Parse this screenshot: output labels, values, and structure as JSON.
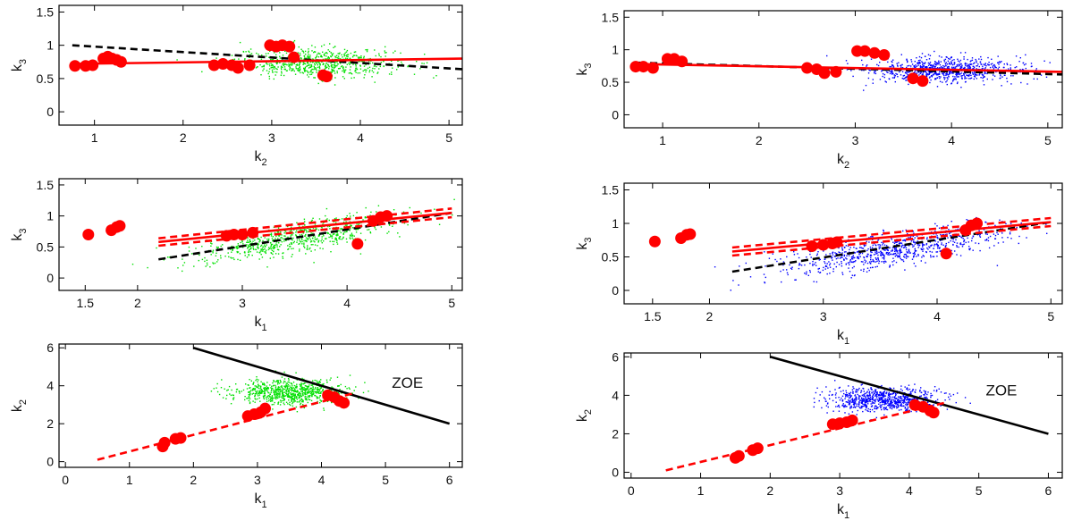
{
  "figure": {
    "background": "#ffffff",
    "colors": {
      "red": "#ff0000",
      "black": "#000000",
      "green": "#00e000",
      "blue": "#0000ff"
    }
  },
  "chart_data": [
    {
      "id": "left-top",
      "type": "scatter",
      "cloud_color": "green",
      "xlabel": "k",
      "xlabel_sub": "2",
      "ylabel": "k",
      "ylabel_sub": "3",
      "xlim": [
        0.6,
        5.15
      ],
      "ylim": [
        -0.2,
        1.6
      ],
      "xticks": [
        1,
        2,
        3,
        4,
        5
      ],
      "xtick_labels": [
        "1",
        "2",
        "3",
        "4",
        "5"
      ],
      "yticks": [
        0,
        0.5,
        1,
        1.5
      ],
      "ytick_labels": [
        "0",
        "0.5",
        "1",
        "1.5"
      ],
      "cloud": {
        "cx": 3.5,
        "cy": 0.75,
        "sx": 0.45,
        "sy": 0.11,
        "n": 700
      },
      "lines": [
        {
          "style": "dashed",
          "color": "black",
          "x": [
            0.75,
            5.15
          ],
          "y": [
            1.0,
            0.64
          ]
        },
        {
          "style": "solid",
          "color": "red",
          "x": [
            0.75,
            5.15
          ],
          "y": [
            0.72,
            0.8
          ]
        }
      ],
      "points": [
        [
          0.78,
          0.69
        ],
        [
          0.9,
          0.69
        ],
        [
          0.98,
          0.7
        ],
        [
          1.1,
          0.8
        ],
        [
          1.15,
          0.83
        ],
        [
          1.2,
          0.8
        ],
        [
          1.25,
          0.78
        ],
        [
          1.3,
          0.75
        ],
        [
          2.35,
          0.7
        ],
        [
          2.45,
          0.72
        ],
        [
          2.55,
          0.7
        ],
        [
          2.62,
          0.66
        ],
        [
          2.75,
          0.7
        ],
        [
          2.98,
          1.0
        ],
        [
          3.05,
          0.98
        ],
        [
          3.12,
          1.0
        ],
        [
          3.2,
          0.98
        ],
        [
          3.25,
          0.82
        ],
        [
          3.58,
          0.55
        ],
        [
          3.62,
          0.53
        ]
      ],
      "annotation": ""
    },
    {
      "id": "left-middle",
      "type": "scatter",
      "cloud_color": "green",
      "xlabel": "k",
      "xlabel_sub": "1",
      "ylabel": "k",
      "ylabel_sub": "3",
      "xlim": [
        1.25,
        5.1
      ],
      "ylim": [
        -0.2,
        1.6
      ],
      "xticks": [
        1.5,
        2,
        3,
        4,
        5
      ],
      "xtick_labels": [
        "1.5",
        "2",
        "3",
        "4",
        "5"
      ],
      "yticks": [
        0,
        0.5,
        1,
        1.5
      ],
      "ytick_labels": [
        "0",
        "0.5",
        "1",
        "1.5"
      ],
      "cloud": {
        "cx": 3.5,
        "cy": 0.65,
        "sx": 0.5,
        "sy": 0.12,
        "slope": 0.28,
        "n": 700
      },
      "lines": [
        {
          "style": "dashed",
          "color": "black",
          "x": [
            2.2,
            5.0
          ],
          "y": [
            0.3,
            1.05
          ]
        },
        {
          "style": "solid",
          "color": "red",
          "x": [
            2.2,
            5.0
          ],
          "y": [
            0.58,
            1.05
          ]
        },
        {
          "style": "dashed",
          "color": "red",
          "x": [
            2.2,
            5.0
          ],
          "y": [
            0.64,
            1.12
          ]
        },
        {
          "style": "dashed",
          "color": "red",
          "x": [
            2.2,
            5.0
          ],
          "y": [
            0.52,
            0.98
          ]
        }
      ],
      "points": [
        [
          1.53,
          0.7
        ],
        [
          1.75,
          0.77
        ],
        [
          1.8,
          0.82
        ],
        [
          1.83,
          0.84
        ],
        [
          2.85,
          0.68
        ],
        [
          2.92,
          0.7
        ],
        [
          3.0,
          0.7
        ],
        [
          3.1,
          0.73
        ],
        [
          4.1,
          0.55
        ],
        [
          4.25,
          0.92
        ],
        [
          4.32,
          0.98
        ],
        [
          4.38,
          1.0
        ]
      ],
      "annotation": ""
    },
    {
      "id": "left-bottom",
      "type": "scatter",
      "cloud_color": "green",
      "xlabel": "k",
      "xlabel_sub": "1",
      "ylabel": "k",
      "ylabel_sub": "2",
      "xlim": [
        -0.1,
        6.2
      ],
      "ylim": [
        -0.3,
        6.2
      ],
      "xticks": [
        0,
        1,
        2,
        3,
        4,
        5,
        6
      ],
      "xtick_labels": [
        "0",
        "1",
        "2",
        "3",
        "4",
        "5",
        "6"
      ],
      "yticks": [
        0,
        2,
        4,
        6
      ],
      "ytick_labels": [
        "0",
        "2",
        "4",
        "6"
      ],
      "cloud": {
        "cx": 3.5,
        "cy": 3.7,
        "sx": 0.42,
        "sy": 0.32,
        "n": 800
      },
      "lines": [
        {
          "style": "solid",
          "color": "black",
          "x": [
            2.0,
            6.0
          ],
          "y": [
            6.0,
            2.0
          ]
        },
        {
          "style": "dashed",
          "color": "red",
          "x": [
            0.5,
            4.5
          ],
          "y": [
            0.1,
            3.6
          ]
        }
      ],
      "points": [
        [
          1.52,
          0.8
        ],
        [
          1.55,
          1.0
        ],
        [
          1.72,
          1.2
        ],
        [
          1.8,
          1.25
        ],
        [
          2.85,
          2.4
        ],
        [
          2.95,
          2.5
        ],
        [
          3.05,
          2.6
        ],
        [
          3.12,
          2.8
        ],
        [
          4.1,
          3.5
        ],
        [
          4.2,
          3.4
        ],
        [
          4.28,
          3.2
        ],
        [
          4.35,
          3.1
        ]
      ],
      "annotation": "ZOE",
      "annotation_pos": [
        5.1,
        3.9
      ]
    },
    {
      "id": "right-top",
      "type": "scatter",
      "cloud_color": "blue",
      "xlabel": "k",
      "xlabel_sub": "2",
      "ylabel": "k",
      "ylabel_sub": "3",
      "xlim": [
        0.6,
        5.15
      ],
      "ylim": [
        -0.2,
        1.6
      ],
      "xticks": [
        1,
        2,
        3,
        4,
        5
      ],
      "xtick_labels": [
        "1",
        "2",
        "3",
        "4",
        "5"
      ],
      "yticks": [
        0,
        0.5,
        1,
        1.5
      ],
      "ytick_labels": [
        "0",
        "0.5",
        "1",
        "1.5"
      ],
      "cloud": {
        "cx": 3.9,
        "cy": 0.7,
        "sx": 0.42,
        "sy": 0.1,
        "n": 800
      },
      "lines": [
        {
          "style": "dashed",
          "color": "black",
          "x": [
            0.75,
            5.15
          ],
          "y": [
            0.8,
            0.62
          ]
        },
        {
          "style": "solid",
          "color": "red",
          "x": [
            0.75,
            5.15
          ],
          "y": [
            0.78,
            0.66
          ]
        }
      ],
      "points": [
        [
          0.72,
          0.74
        ],
        [
          0.8,
          0.74
        ],
        [
          0.9,
          0.72
        ],
        [
          1.05,
          0.86
        ],
        [
          1.12,
          0.86
        ],
        [
          1.2,
          0.82
        ],
        [
          2.5,
          0.72
        ],
        [
          2.6,
          0.7
        ],
        [
          2.68,
          0.64
        ],
        [
          2.8,
          0.66
        ],
        [
          3.02,
          0.98
        ],
        [
          3.1,
          0.98
        ],
        [
          3.2,
          0.95
        ],
        [
          3.3,
          0.92
        ],
        [
          3.6,
          0.56
        ],
        [
          3.7,
          0.52
        ]
      ],
      "annotation": ""
    },
    {
      "id": "right-middle",
      "type": "scatter",
      "cloud_color": "blue",
      "xlabel": "k",
      "xlabel_sub": "1",
      "ylabel": "k",
      "ylabel_sub": "3",
      "xlim": [
        1.25,
        5.1
      ],
      "ylim": [
        -0.2,
        1.6
      ],
      "xticks": [
        1.5,
        2,
        3,
        4,
        5
      ],
      "xtick_labels": [
        "1.5",
        "2",
        "3",
        "4",
        "5"
      ],
      "yticks": [
        0,
        0.5,
        1,
        1.5
      ],
      "ytick_labels": [
        "0",
        "0.5",
        "1",
        "1.5"
      ],
      "cloud": {
        "cx": 3.6,
        "cy": 0.62,
        "sx": 0.5,
        "sy": 0.12,
        "slope": 0.28,
        "n": 800
      },
      "lines": [
        {
          "style": "dashed",
          "color": "black",
          "x": [
            2.2,
            5.0
          ],
          "y": [
            0.28,
            1.02
          ]
        },
        {
          "style": "solid",
          "color": "red",
          "x": [
            2.2,
            5.0
          ],
          "y": [
            0.58,
            1.02
          ]
        },
        {
          "style": "dashed",
          "color": "red",
          "x": [
            2.2,
            5.0
          ],
          "y": [
            0.64,
            1.08
          ]
        },
        {
          "style": "dashed",
          "color": "red",
          "x": [
            2.2,
            5.0
          ],
          "y": [
            0.52,
            0.96
          ]
        }
      ],
      "points": [
        [
          1.52,
          0.73
        ],
        [
          1.75,
          0.78
        ],
        [
          1.8,
          0.83
        ],
        [
          1.83,
          0.84
        ],
        [
          2.9,
          0.66
        ],
        [
          3.0,
          0.68
        ],
        [
          3.08,
          0.7
        ],
        [
          3.12,
          0.72
        ],
        [
          4.08,
          0.55
        ],
        [
          4.25,
          0.9
        ],
        [
          4.3,
          0.97
        ],
        [
          4.35,
          1.0
        ]
      ],
      "annotation": ""
    },
    {
      "id": "right-bottom",
      "type": "scatter",
      "cloud_color": "blue",
      "xlabel": "k",
      "xlabel_sub": "1",
      "ylabel": "k",
      "ylabel_sub": "2",
      "xlim": [
        -0.1,
        6.2
      ],
      "ylim": [
        -0.3,
        6.2
      ],
      "xticks": [
        0,
        1,
        2,
        3,
        4,
        5,
        6
      ],
      "xtick_labels": [
        "0",
        "1",
        "2",
        "3",
        "4",
        "5",
        "6"
      ],
      "yticks": [
        0,
        2,
        4,
        6
      ],
      "ytick_labels": [
        "0",
        "2",
        "4",
        "6"
      ],
      "cloud": {
        "cx": 3.6,
        "cy": 3.8,
        "sx": 0.4,
        "sy": 0.32,
        "n": 800
      },
      "lines": [
        {
          "style": "solid",
          "color": "black",
          "x": [
            2.0,
            6.0
          ],
          "y": [
            6.0,
            2.0
          ]
        },
        {
          "style": "dashed",
          "color": "red",
          "x": [
            0.5,
            4.5
          ],
          "y": [
            0.1,
            3.6
          ]
        }
      ],
      "points": [
        [
          1.5,
          0.75
        ],
        [
          1.55,
          0.85
        ],
        [
          1.75,
          1.15
        ],
        [
          1.82,
          1.25
        ],
        [
          2.9,
          2.5
        ],
        [
          3.0,
          2.55
        ],
        [
          3.1,
          2.6
        ],
        [
          3.18,
          2.7
        ],
        [
          4.08,
          3.5
        ],
        [
          4.2,
          3.4
        ],
        [
          4.3,
          3.2
        ],
        [
          4.35,
          3.1
        ]
      ],
      "annotation": "ZOE",
      "annotation_pos": [
        5.1,
        4.0
      ]
    }
  ]
}
